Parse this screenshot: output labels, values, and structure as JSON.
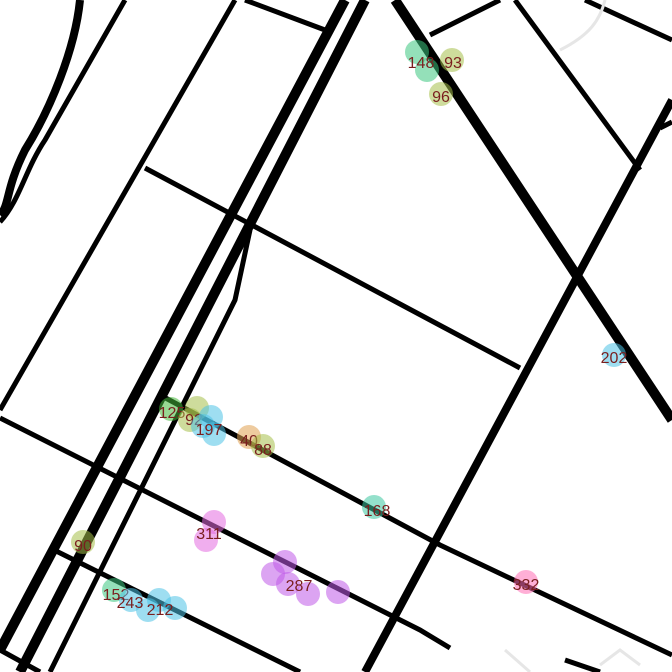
{
  "map": {
    "background_color": "#ffffff",
    "road_color": "#000000",
    "label_color": "#7a1e1e"
  },
  "markers": [
    {
      "label": "148",
      "color": "#3cc77f"
    },
    {
      "label": "93",
      "color": "#a6c04a"
    },
    {
      "label": "96",
      "color": "#a6c04a"
    },
    {
      "label": "202",
      "color": "#4fc3e6"
    },
    {
      "label": "125",
      "color": "#45b83a"
    },
    {
      "label": "92",
      "color": "#a6c04a"
    },
    {
      "label": "197",
      "color": "#4fc3e6"
    },
    {
      "label": "40",
      "color": "#e0a050"
    },
    {
      "label": "88",
      "color": "#a6c04a"
    },
    {
      "label": "168",
      "color": "#3cc7a0"
    },
    {
      "label": "311",
      "color": "#e46be0"
    },
    {
      "label": "90",
      "color": "#a6c04a"
    },
    {
      "label": "287",
      "color": "#c05ae8"
    },
    {
      "label": "332",
      "color": "#ff6eb4"
    },
    {
      "label": "152",
      "color": "#3cc77f"
    },
    {
      "label": "243",
      "color": "#4fc3e6"
    },
    {
      "label": "212",
      "color": "#4fc3e6"
    }
  ]
}
